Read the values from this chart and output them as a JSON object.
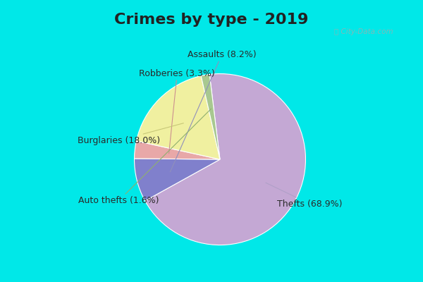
{
  "title": "Crimes by type - 2019",
  "values": [
    68.9,
    8.2,
    3.3,
    18.0,
    1.6
  ],
  "colors": [
    "#c4a8d4",
    "#8080cc",
    "#e8a8a8",
    "#f0f0a0",
    "#a8c890"
  ],
  "label_texts": [
    "Thefts (68.9%)",
    "Assaults (8.2%)",
    "Robberies (3.3%)",
    "Burglaries (18.0%)",
    "Auto thefts (1.6%)"
  ],
  "background_cyan": "#00e8e8",
  "background_inner": "#d0ead8",
  "title_fontsize": 16,
  "label_fontsize": 9,
  "startangle": 97,
  "watermark": "City-Data.com"
}
